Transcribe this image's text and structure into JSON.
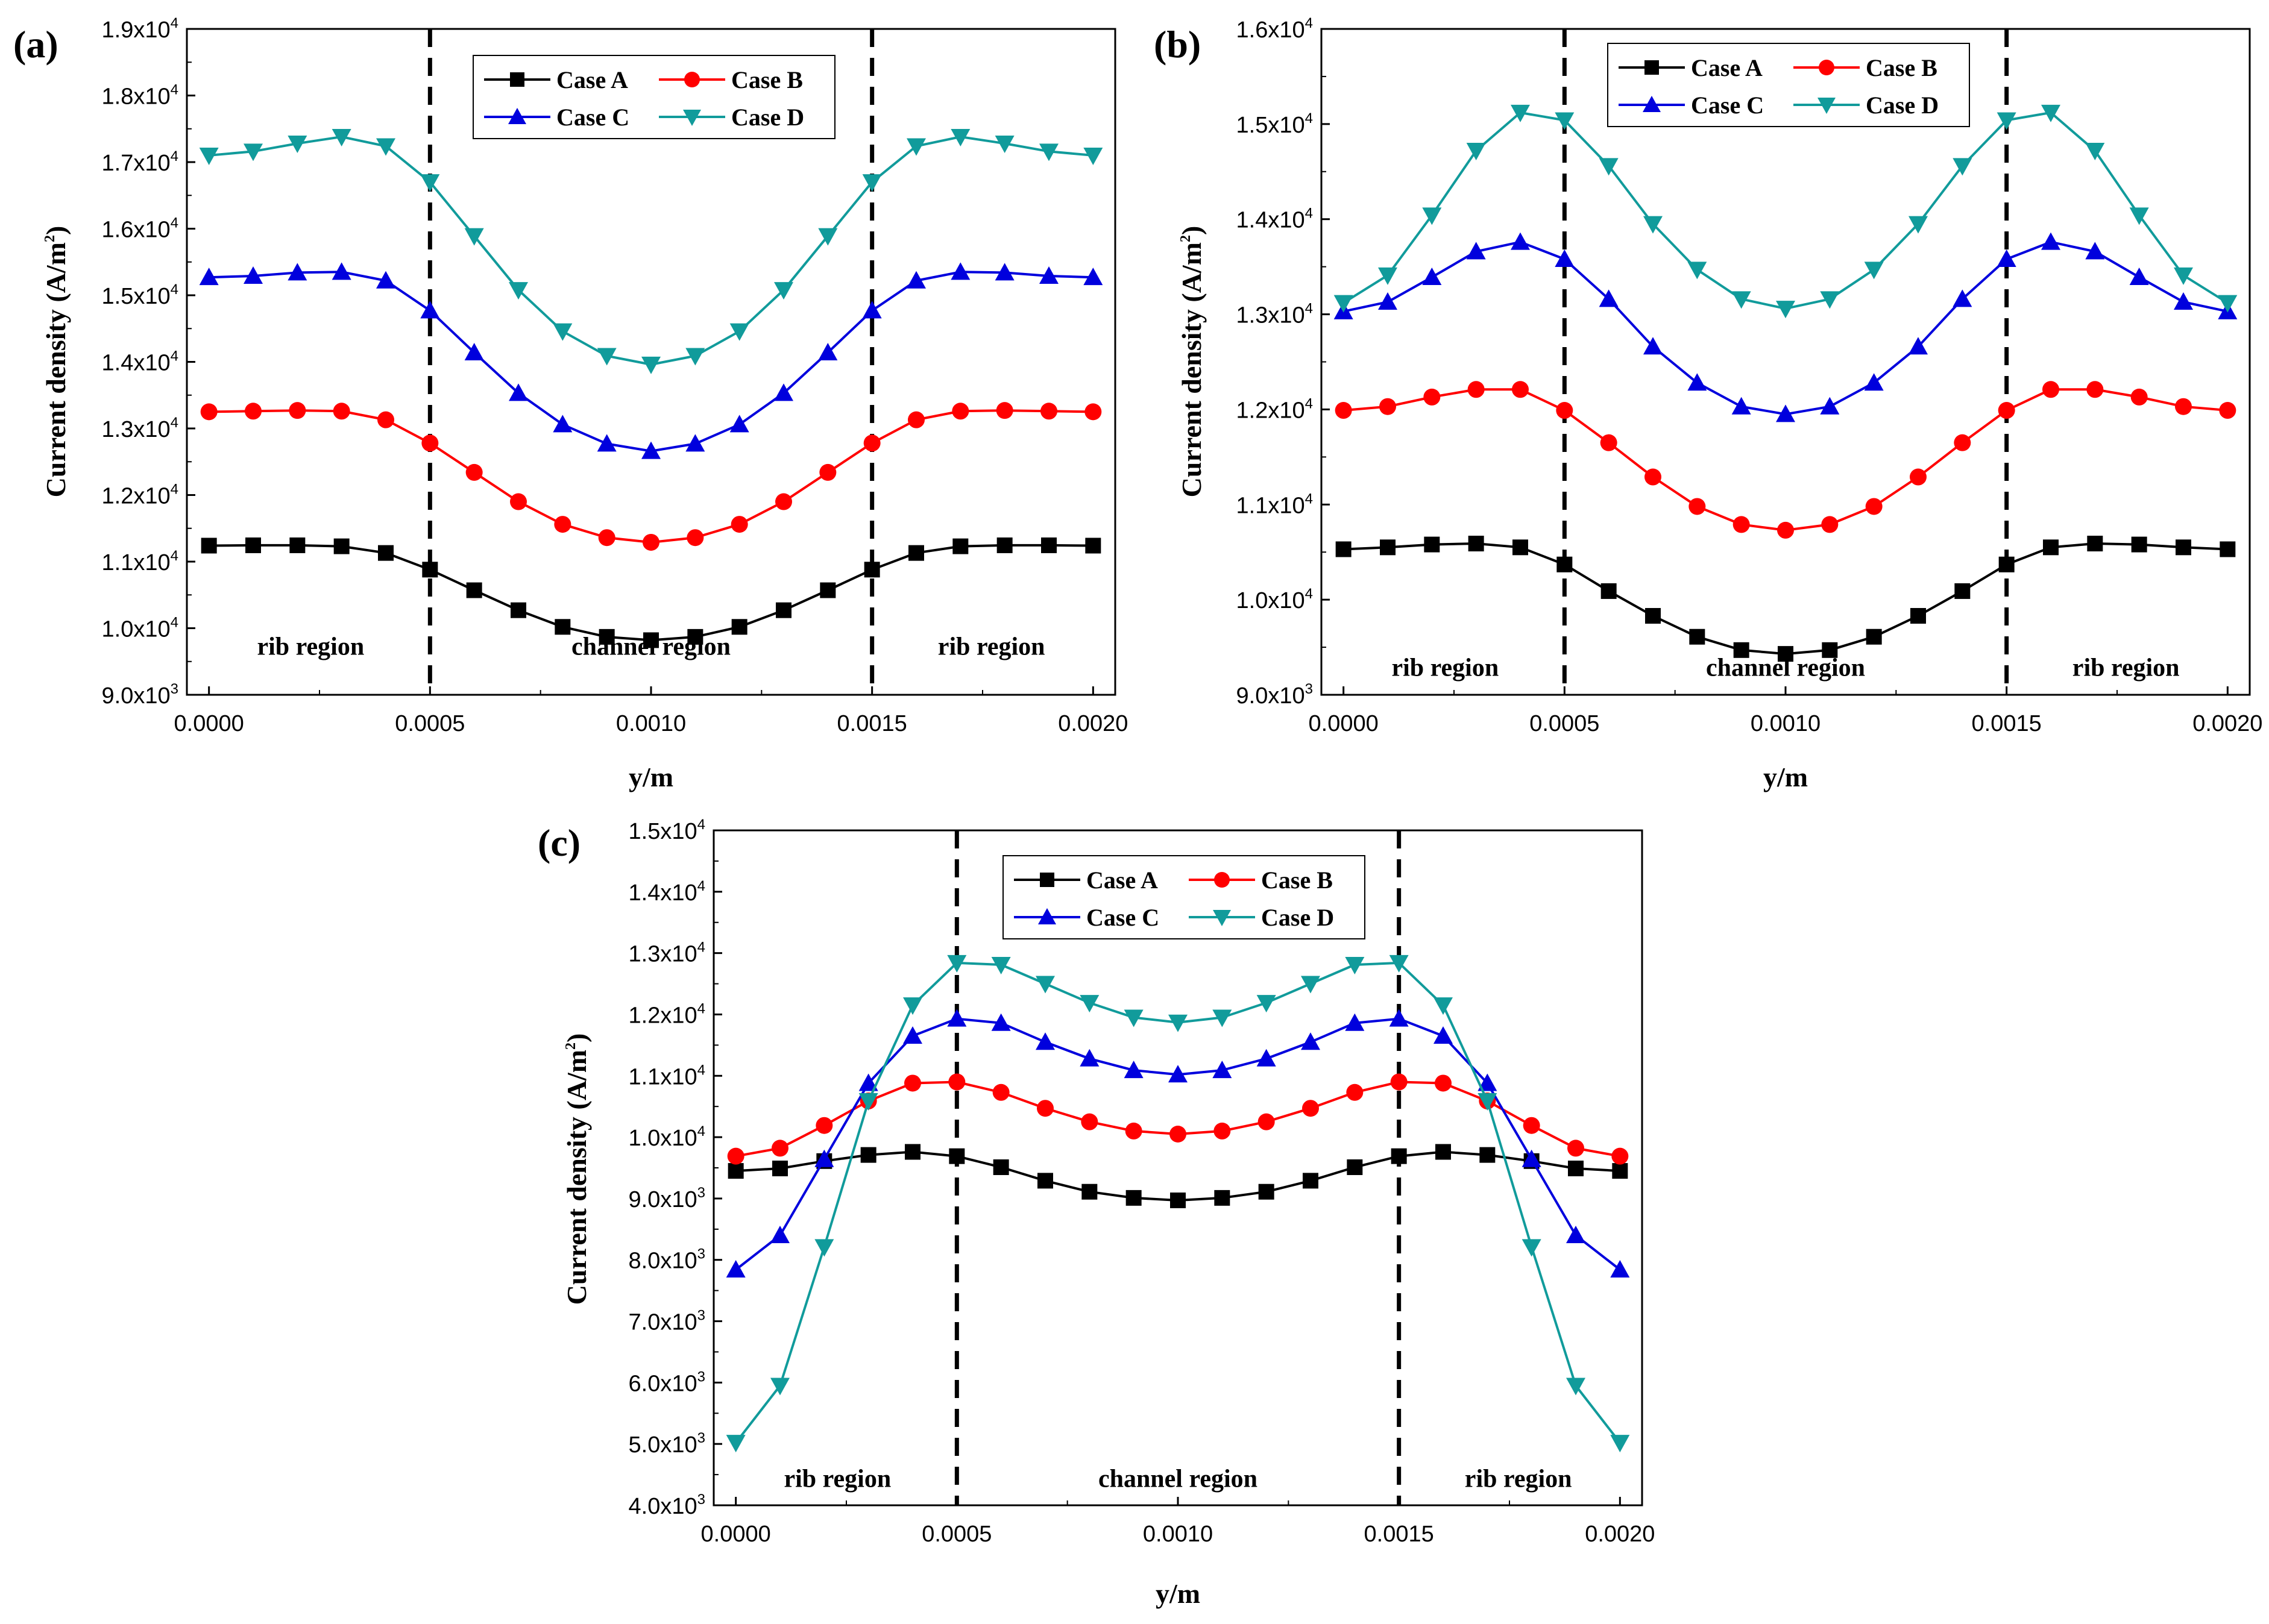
{
  "colors": {
    "case_a": "#000000",
    "case_b": "#ff0000",
    "case_c": "#0000dd",
    "case_d": "#119b9b"
  },
  "chart_data": [
    {
      "type": "line",
      "panel_label": "(a)",
      "xlabel": "y/m",
      "ylabel": "Current density (A/m2)",
      "ylabel_main": "Current density (A/m",
      "ylabel_sup": "2",
      "ylabel_close": ")",
      "xlim": [
        -5e-05,
        0.00205
      ],
      "ylim": [
        9000,
        19000
      ],
      "x_ticks": [
        0,
        0.0005,
        0.001,
        0.0015,
        0.002
      ],
      "x_tick_labels": [
        "0.0000",
        "0.0005",
        "0.0010",
        "0.0015",
        "0.0020"
      ],
      "y_ticks": [
        9000,
        10000,
        11000,
        12000,
        13000,
        14000,
        15000,
        16000,
        17000,
        18000,
        19000
      ],
      "y_tick_mantissa": [
        "9.0x10",
        "1.0x10",
        "1.1x10",
        "1.2x10",
        "1.3x10",
        "1.4x10",
        "1.5x10",
        "1.6x10",
        "1.7x10",
        "1.8x10",
        "1.9x10"
      ],
      "y_tick_exp": [
        "3",
        "4",
        "4",
        "4",
        "4",
        "4",
        "4",
        "4",
        "4",
        "4",
        "4"
      ],
      "dividers": [
        0.0005,
        0.0015
      ],
      "regions": [
        {
          "label": "rib region",
          "x": 0.00023,
          "y": 9600
        },
        {
          "label": "channel region",
          "x": 0.001,
          "y": 9600
        },
        {
          "label": "rib region",
          "x": 0.00177,
          "y": 9600
        }
      ],
      "legend": {
        "position": "top-center",
        "entries": [
          "Case A",
          "Case B",
          "Case C",
          "Case D"
        ]
      },
      "x": [
        0,
        0.0001,
        0.0002,
        0.0003,
        0.0004,
        0.0005,
        0.0006,
        0.0007,
        0.0008,
        0.0009,
        0.001,
        0.0011,
        0.0012,
        0.0013,
        0.0014,
        0.0015,
        0.0016,
        0.0017,
        0.0018,
        0.0019,
        0.002
      ],
      "series": [
        {
          "name": "Case A",
          "marker": "square",
          "values": [
            11240,
            11245,
            11245,
            11230,
            11130,
            10880,
            10570,
            10270,
            10020,
            9870,
            9820,
            9870,
            10020,
            10270,
            10570,
            10880,
            11130,
            11230,
            11245,
            11245,
            11240
          ]
        },
        {
          "name": "Case B",
          "marker": "circle",
          "values": [
            13250,
            13260,
            13270,
            13260,
            13130,
            12780,
            12340,
            11900,
            11560,
            11360,
            11290,
            11360,
            11560,
            11900,
            12340,
            12780,
            13130,
            13260,
            13270,
            13260,
            13250
          ]
        },
        {
          "name": "Case C",
          "marker": "triangle-up",
          "values": [
            15270,
            15290,
            15340,
            15350,
            15220,
            14770,
            14140,
            13530,
            13060,
            12770,
            12660,
            12770,
            13060,
            13530,
            14140,
            14770,
            15220,
            15350,
            15340,
            15290,
            15270
          ]
        },
        {
          "name": "Case D",
          "marker": "triangle-down",
          "values": [
            17100,
            17160,
            17280,
            17380,
            17240,
            16700,
            15890,
            15080,
            14460,
            14090,
            13960,
            14090,
            14460,
            15080,
            15890,
            16700,
            17240,
            17380,
            17280,
            17160,
            17100
          ]
        }
      ]
    },
    {
      "type": "line",
      "panel_label": "(b)",
      "xlabel": "y/m",
      "ylabel": "Current density (A/m2)",
      "ylabel_main": "Current density (A/m",
      "ylabel_sup": "2",
      "ylabel_close": ")",
      "xlim": [
        -5e-05,
        0.00205
      ],
      "ylim": [
        9000,
        16000
      ],
      "x_ticks": [
        0,
        0.0005,
        0.001,
        0.0015,
        0.002
      ],
      "x_tick_labels": [
        "0.0000",
        "0.0005",
        "0.0010",
        "0.0015",
        "0.0020"
      ],
      "y_ticks": [
        9000,
        10000,
        11000,
        12000,
        13000,
        14000,
        15000,
        16000
      ],
      "y_tick_mantissa": [
        "9.0x10",
        "1.0x10",
        "1.1x10",
        "1.2x10",
        "1.3x10",
        "1.4x10",
        "1.5x10",
        "1.6x10"
      ],
      "y_tick_exp": [
        "3",
        "4",
        "4",
        "4",
        "4",
        "4",
        "4",
        "4"
      ],
      "dividers": [
        0.0005,
        0.0015
      ],
      "regions": [
        {
          "label": "rib region",
          "x": 0.00023,
          "y": 9200
        },
        {
          "label": "channel region",
          "x": 0.001,
          "y": 9200
        },
        {
          "label": "rib region",
          "x": 0.00177,
          "y": 9200
        }
      ],
      "legend": {
        "position": "top-right",
        "entries": [
          "Case A",
          "Case B",
          "Case C",
          "Case D"
        ]
      },
      "x": [
        0,
        0.0001,
        0.0002,
        0.0003,
        0.0004,
        0.0005,
        0.0006,
        0.0007,
        0.0008,
        0.0009,
        0.001,
        0.0011,
        0.0012,
        0.0013,
        0.0014,
        0.0015,
        0.0016,
        0.0017,
        0.0018,
        0.0019,
        0.002
      ],
      "series": [
        {
          "name": "Case A",
          "marker": "square",
          "values": [
            10530,
            10550,
            10580,
            10590,
            10550,
            10370,
            10090,
            9830,
            9610,
            9470,
            9430,
            9470,
            9610,
            9830,
            10090,
            10370,
            10550,
            10590,
            10580,
            10550,
            10530
          ]
        },
        {
          "name": "Case B",
          "marker": "circle",
          "values": [
            11990,
            12030,
            12130,
            12210,
            12210,
            11990,
            11650,
            11290,
            10980,
            10790,
            10730,
            10790,
            10980,
            11290,
            11650,
            11990,
            12210,
            12210,
            12130,
            12030,
            11990
          ]
        },
        {
          "name": "Case C",
          "marker": "triangle-up",
          "values": [
            13030,
            13130,
            13390,
            13660,
            13760,
            13580,
            13160,
            12660,
            12280,
            12030,
            11950,
            12030,
            12280,
            12660,
            13160,
            13580,
            13760,
            13660,
            13390,
            13130,
            13030
          ]
        },
        {
          "name": "Case D",
          "marker": "triangle-down",
          "values": [
            13120,
            13410,
            14040,
            14720,
            15120,
            15040,
            14560,
            13950,
            13470,
            13160,
            13060,
            13160,
            13470,
            13950,
            14560,
            15040,
            15120,
            14720,
            14040,
            13410,
            13120
          ]
        }
      ]
    },
    {
      "type": "line",
      "panel_label": "(c)",
      "xlabel": "y/m",
      "ylabel": "Current density (A/m2)",
      "ylabel_main": "Current density (A/m",
      "ylabel_sup": "2",
      "ylabel_close": ")",
      "xlim": [
        -5e-05,
        0.00205
      ],
      "ylim": [
        4000,
        15000
      ],
      "x_ticks": [
        0,
        0.0005,
        0.001,
        0.0015,
        0.002
      ],
      "x_tick_labels": [
        "0.0000",
        "0.0005",
        "0.0010",
        "0.0015",
        "0.0020"
      ],
      "y_ticks": [
        4000,
        5000,
        6000,
        7000,
        8000,
        9000,
        10000,
        11000,
        12000,
        13000,
        14000,
        15000
      ],
      "y_tick_mantissa": [
        "4.0x10",
        "5.0x10",
        "6.0x10",
        "7.0x10",
        "8.0x10",
        "9.0x10",
        "1.0x10",
        "1.1x10",
        "1.2x10",
        "1.3x10",
        "1.4x10",
        "1.5x10"
      ],
      "y_tick_exp": [
        "3",
        "3",
        "3",
        "3",
        "3",
        "3",
        "4",
        "4",
        "4",
        "4",
        "4",
        "4"
      ],
      "dividers": [
        0.0005,
        0.0015
      ],
      "regions": [
        {
          "label": "rib region",
          "x": 0.00023,
          "y": 4300
        },
        {
          "label": "channel region",
          "x": 0.001,
          "y": 4300
        },
        {
          "label": "rib region",
          "x": 0.00177,
          "y": 4300
        }
      ],
      "legend": {
        "position": "top-center",
        "entries": [
          "Case A",
          "Case B",
          "Case C",
          "Case D"
        ]
      },
      "x": [
        0,
        0.0001,
        0.0002,
        0.0003,
        0.0004,
        0.0005,
        0.0006,
        0.0007,
        0.0008,
        0.0009,
        0.001,
        0.0011,
        0.0012,
        0.0013,
        0.0014,
        0.0015,
        0.0016,
        0.0017,
        0.0018,
        0.0019,
        0.002
      ],
      "series": [
        {
          "name": "Case A",
          "marker": "square",
          "values": [
            9450,
            9490,
            9610,
            9710,
            9760,
            9690,
            9510,
            9290,
            9110,
            9010,
            8970,
            9010,
            9110,
            9290,
            9510,
            9690,
            9760,
            9710,
            9610,
            9490,
            9450
          ]
        },
        {
          "name": "Case B",
          "marker": "circle",
          "values": [
            9690,
            9820,
            10190,
            10590,
            10880,
            10900,
            10730,
            10470,
            10250,
            10100,
            10050,
            10100,
            10250,
            10470,
            10730,
            10900,
            10880,
            10590,
            10190,
            9820,
            9690
          ]
        },
        {
          "name": "Case C",
          "marker": "triangle-up",
          "values": [
            7840,
            8400,
            9640,
            10880,
            11650,
            11930,
            11860,
            11550,
            11280,
            11090,
            11020,
            11090,
            11280,
            11550,
            11860,
            11930,
            11650,
            10880,
            9640,
            8400,
            7840
          ]
        },
        {
          "name": "Case D",
          "marker": "triangle-down",
          "values": [
            5020,
            5950,
            8210,
            10590,
            12150,
            12840,
            12810,
            12500,
            12190,
            11950,
            11870,
            11950,
            12190,
            12500,
            12810,
            12840,
            12150,
            10590,
            8210,
            5950,
            5020
          ]
        }
      ]
    }
  ]
}
